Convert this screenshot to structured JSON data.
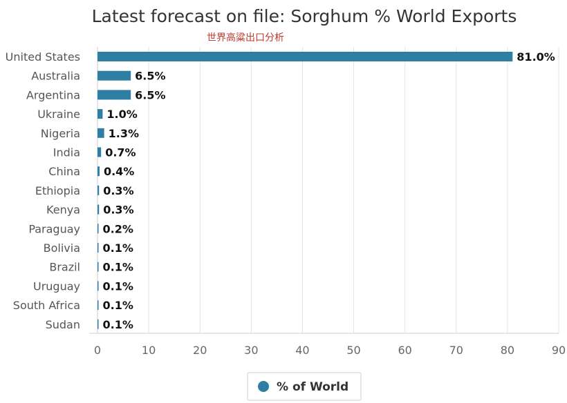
{
  "chart_data": {
    "type": "bar",
    "orientation": "horizontal",
    "title": "Latest forecast on file: Sorghum % World Exports",
    "subtitle": "世界高粱出口分析",
    "categories": [
      "United States",
      "Australia",
      "Argentina",
      "Ukraine",
      "Nigeria",
      "India",
      "China",
      "Ethiopia",
      "Kenya",
      "Paraguay",
      "Bolivia",
      "Brazil",
      "Uruguay",
      "South Africa",
      "Sudan"
    ],
    "series": [
      {
        "name": "% of World",
        "values": [
          81.0,
          6.5,
          6.5,
          1.0,
          1.3,
          0.7,
          0.4,
          0.3,
          0.3,
          0.2,
          0.1,
          0.1,
          0.1,
          0.1,
          0.1
        ],
        "labels": [
          "81.0%",
          "6.5%",
          "6.5%",
          "1.0%",
          "1.3%",
          "0.7%",
          "0.4%",
          "0.3%",
          "0.3%",
          "0.2%",
          "0.1%",
          "0.1%",
          "0.1%",
          "0.1%",
          "0.1%"
        ],
        "color": "#2f7ea4"
      }
    ],
    "xlim": [
      0,
      90
    ],
    "xticks": [
      0,
      10,
      20,
      30,
      40,
      50,
      60,
      70,
      80,
      90
    ],
    "xtick_labels": [
      "0",
      "10",
      "20",
      "30",
      "40",
      "50",
      "60",
      "70",
      "80",
      "90"
    ],
    "grid": "vertical",
    "legend": {
      "position": "bottom-center",
      "label": "% of World"
    },
    "colors": {
      "bar": "#2f7ea4",
      "grid": "#e3e3e3",
      "axis": "#cccccc"
    }
  }
}
